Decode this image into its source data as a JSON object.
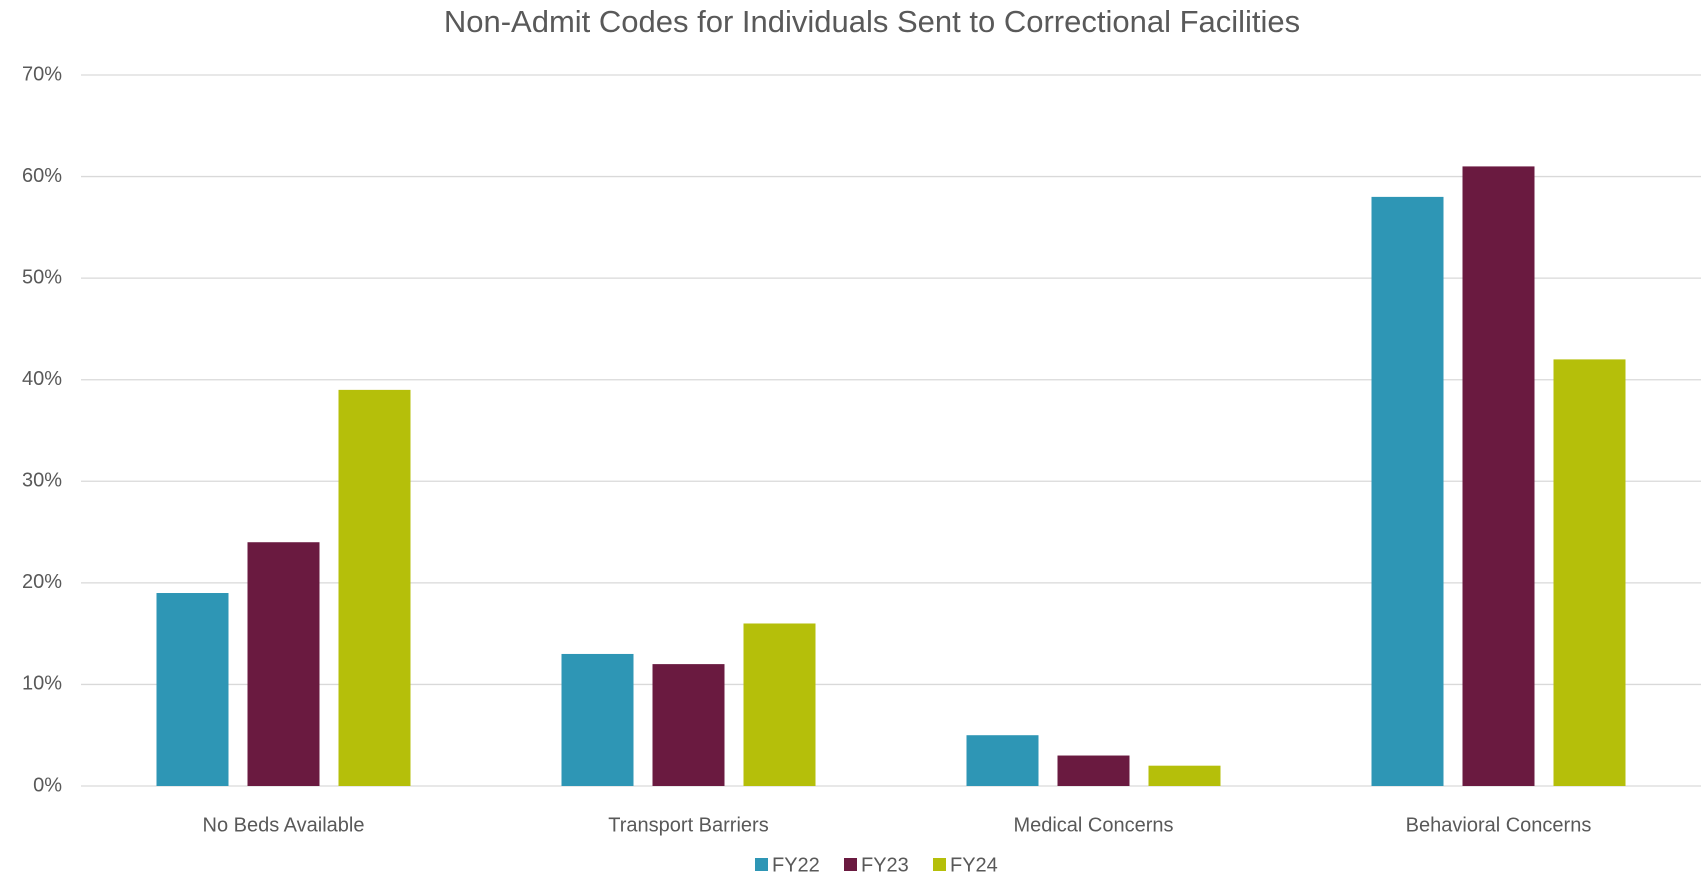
{
  "chart_data": {
    "type": "bar",
    "title": "Non-Admit Codes for Individuals Sent to Correctional Facilities",
    "categories": [
      "No Beds Available",
      "Transport Barriers",
      "Medical Concerns",
      "Behavioral Concerns"
    ],
    "series": [
      {
        "name": "FY22",
        "color": "#2e96b5",
        "values": [
          19,
          13,
          5,
          58
        ]
      },
      {
        "name": "FY23",
        "color": "#6a1a40",
        "values": [
          24,
          12,
          3,
          61
        ]
      },
      {
        "name": "FY24",
        "color": "#b5bf0a",
        "values": [
          39,
          16,
          2,
          42
        ]
      }
    ],
    "ylim": [
      0,
      70
    ],
    "yticks": [
      {
        "value": 0,
        "label": "0%"
      },
      {
        "value": 10,
        "label": "10%"
      },
      {
        "value": 20,
        "label": "20%"
      },
      {
        "value": 30,
        "label": "30%"
      },
      {
        "value": 40,
        "label": "40%"
      },
      {
        "value": 50,
        "label": "50%"
      },
      {
        "value": 60,
        "label": "60%"
      },
      {
        "value": 70,
        "label": "70%"
      }
    ],
    "grid": true,
    "legend": "bottom"
  }
}
